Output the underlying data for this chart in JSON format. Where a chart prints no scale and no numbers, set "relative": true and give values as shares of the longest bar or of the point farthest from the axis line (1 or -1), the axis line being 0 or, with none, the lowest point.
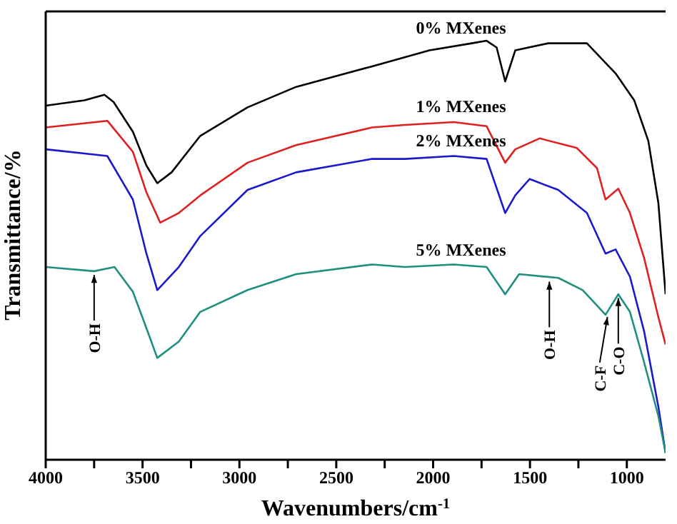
{
  "chart_data": {
    "type": "line",
    "relative": true,
    "xlabel": "Wavenumbers/cm$^{-1}$",
    "ylabel": "Transmittance/%",
    "xlim": [
      4000,
      800
    ],
    "xticks": [
      4000,
      {
        "value": 3750,
        "label": null
      },
      3500,
      {
        "value": 3250,
        "label": null
      },
      3000,
      {
        "value": 2750,
        "label": null
      },
      2500,
      {
        "value": 2250,
        "label": null
      },
      2000,
      {
        "value": 1750,
        "label": null
      },
      1500,
      {
        "value": 1250,
        "label": null
      },
      1000
    ],
    "series": [
      {
        "name": "0% MXenes",
        "color": "#000000",
        "x": [
          4000,
          3800,
          3697,
          3650,
          3550,
          3480,
          3424,
          3350,
          3202,
          2958,
          2707,
          2315,
          2019,
          1800,
          1724,
          1672,
          1628,
          1576,
          1406,
          1206,
          1058,
          962,
          889,
          837,
          800
        ],
        "values": [
          0.845,
          0.858,
          0.871,
          0.854,
          0.783,
          0.702,
          0.66,
          0.686,
          0.773,
          0.841,
          0.89,
          0.939,
          0.977,
          0.994,
          1.0,
          0.984,
          0.903,
          0.977,
          0.994,
          0.994,
          0.922,
          0.858,
          0.761,
          0.612,
          0.395
        ]
      },
      {
        "name": "1% MXenes",
        "color": "#e02020",
        "x": [
          4000,
          3682,
          3550,
          3480,
          3409,
          3313,
          3202,
          2958,
          2707,
          2315,
          2145,
          1894,
          1724,
          1628,
          1576,
          1450,
          1258,
          1154,
          1110,
          1044,
          984,
          911,
          837,
          800
        ],
        "values": [
          0.793,
          0.809,
          0.735,
          0.638,
          0.566,
          0.589,
          0.631,
          0.709,
          0.751,
          0.793,
          0.799,
          0.806,
          0.796,
          0.709,
          0.741,
          0.767,
          0.744,
          0.696,
          0.621,
          0.647,
          0.589,
          0.482,
          0.34,
          0.275
        ]
      },
      {
        "name": "2% MXenes",
        "color": "#1a1acc",
        "x": [
          4000,
          3682,
          3550,
          3480,
          3424,
          3313,
          3202,
          2958,
          2707,
          2315,
          2145,
          1894,
          1724,
          1628,
          1576,
          1502,
          1354,
          1206,
          1110,
          1058,
          984,
          911,
          837,
          800
        ],
        "values": [
          0.741,
          0.725,
          0.621,
          0.492,
          0.405,
          0.46,
          0.534,
          0.644,
          0.686,
          0.718,
          0.718,
          0.725,
          0.718,
          0.589,
          0.631,
          0.67,
          0.644,
          0.589,
          0.492,
          0.502,
          0.437,
          0.307,
          0.126,
          0.016
        ]
      },
      {
        "name": "5% MXenes",
        "color": "#1f8f7f",
        "x": [
          4000,
          3750,
          3645,
          3550,
          3480,
          3424,
          3313,
          3202,
          2958,
          2707,
          2315,
          2145,
          1894,
          1724,
          1628,
          1556,
          1354,
          1228,
          1110,
          1044,
          984,
          911,
          837,
          800
        ],
        "values": [
          0.46,
          0.45,
          0.46,
          0.401,
          0.314,
          0.243,
          0.282,
          0.353,
          0.405,
          0.443,
          0.466,
          0.46,
          0.466,
          0.46,
          0.395,
          0.443,
          0.434,
          0.405,
          0.346,
          0.395,
          0.353,
          0.233,
          0.104,
          0.016
        ]
      }
    ],
    "annotations": [
      {
        "text": "O-H",
        "x": 3750,
        "y": 0.45
      },
      {
        "text": "O-H",
        "x": 1400,
        "y": 0.434
      },
      {
        "text": "C-F",
        "x": 1100,
        "y": 0.35
      },
      {
        "text": "C-O",
        "x": 1044,
        "y": 0.395
      }
    ]
  }
}
